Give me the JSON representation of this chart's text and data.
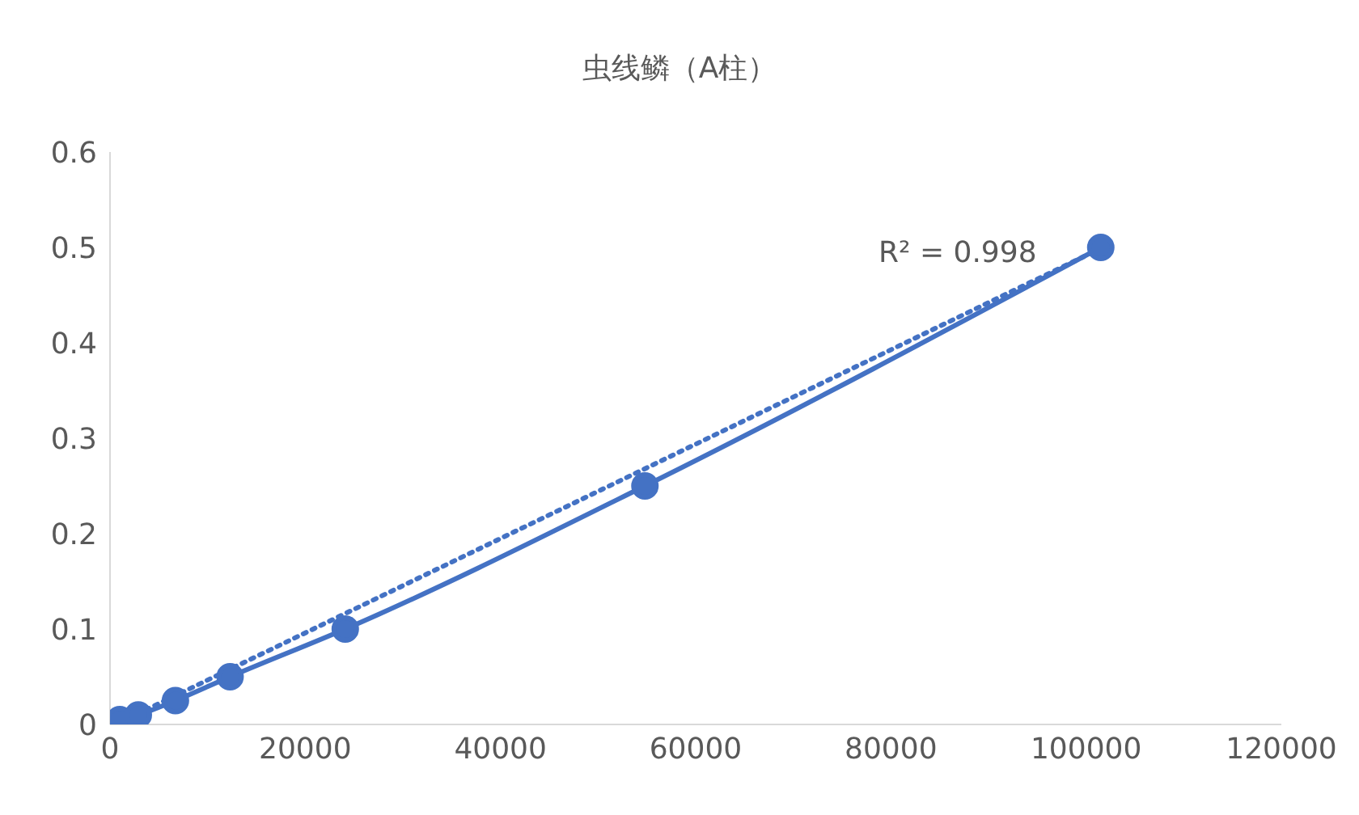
{
  "chart_data": {
    "type": "line",
    "title": "虫线鳞（A柱）",
    "x": [
      1000,
      2900,
      6700,
      12300,
      24100,
      54800,
      101500
    ],
    "series": [
      {
        "color": "#4472c4",
        "values": [
          0.005,
          0.01,
          0.025,
          0.05,
          0.1,
          0.25,
          0.5
        ],
        "marker": "circle",
        "line_style": "solid"
      },
      {
        "type": "line",
        "color": "#4472c4",
        "x": [
          1000,
          101500
        ],
        "values": [
          0.002,
          0.499
        ],
        "marker": "none",
        "line_style": "dotted"
      }
    ],
    "xlim": [
      0,
      120000
    ],
    "xticks": [
      0,
      20000,
      40000,
      60000,
      80000,
      100000,
      120000
    ],
    "ylim": [
      0,
      0.6
    ],
    "yticks": [
      0,
      0.1,
      0.2,
      0.3,
      0.4,
      0.5,
      0.6
    ],
    "grid": false,
    "annotations": [
      "R² = 0.998"
    ]
  }
}
